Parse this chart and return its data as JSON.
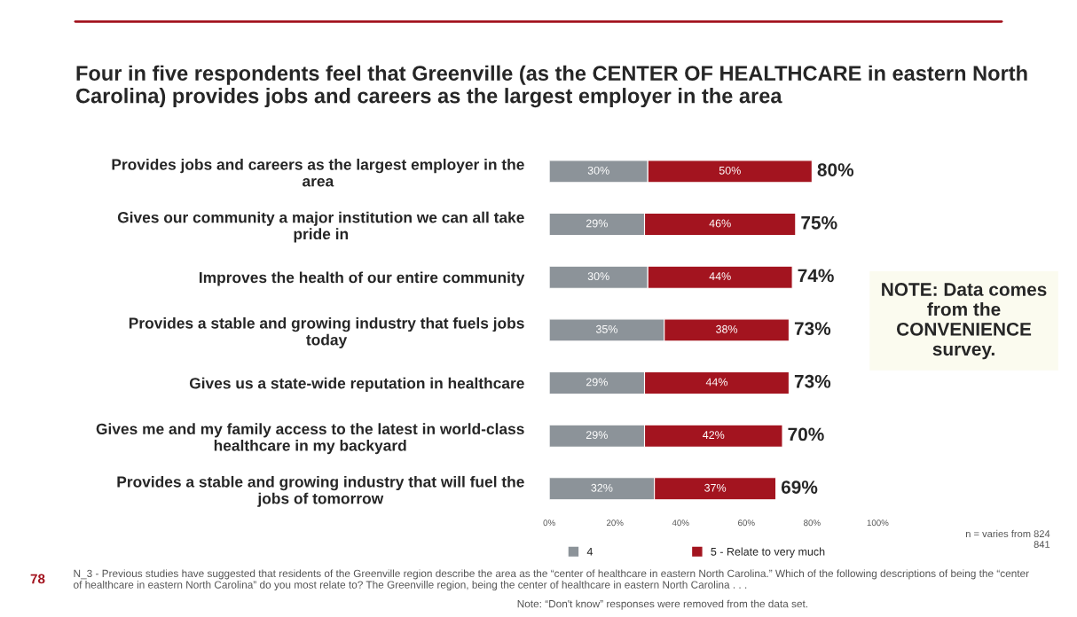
{
  "chart_data": {
    "type": "bar",
    "orientation": "horizontal",
    "stacked": true,
    "title": "Four in five respondents feel that Greenville (as the CENTER OF HEALTHCARE in eastern North Carolina) provides jobs and careers as the largest employer in the area",
    "categories": [
      "Provides jobs and careers as the largest employer in the\narea",
      "Gives our community a major institution we can all take\npride in",
      "Improves the health of our entire community",
      "Provides a stable and growing industry that fuels jobs\ntoday",
      "Gives us a state-wide reputation in healthcare",
      "Gives me and my family access to the latest in world-class\nhealthcare in my backyard",
      "Provides a stable and growing industry that will fuel the\njobs of tomorrow"
    ],
    "series": [
      {
        "name": "4",
        "color": "#8c9399",
        "values": [
          30,
          29,
          30,
          35,
          29,
          29,
          32
        ],
        "value_labels": [
          "30%",
          "29%",
          "30%",
          "35%",
          "29%",
          "29%",
          "32%"
        ]
      },
      {
        "name": "5 - Relate to very much",
        "color": "#a3141f",
        "values": [
          50,
          46,
          44,
          38,
          44,
          42,
          37
        ],
        "value_labels": [
          "50%",
          "46%",
          "44%",
          "38%",
          "44%",
          "42%",
          "37%"
        ]
      }
    ],
    "totals": [
      "80%",
      "75%",
      "74%",
      "73%",
      "73%",
      "70%",
      "69%"
    ],
    "xlim": [
      0,
      100
    ],
    "xticks": [
      {
        "value": 0,
        "label": "0%"
      },
      {
        "value": 20,
        "label": "20%"
      },
      {
        "value": 40,
        "label": "40%"
      },
      {
        "value": 60,
        "label": "60%"
      },
      {
        "value": 80,
        "label": "80%"
      },
      {
        "value": 100,
        "label": "100%"
      }
    ],
    "legend": "bottom",
    "grid": false,
    "annotations": [
      "NOTE: Data comes from the CONVENIENCE survey.",
      "N_3 - Previous studies have suggested that residents of the Greenville region describe the area as the “center of healthcare in eastern North Carolina.” Which of the following descriptions of being the “center of healthcare in eastern North Carolina” do you most relate to? The Greenville region, being the center of healthcare in eastern North Carolina . . .",
      "Note: “Don't know” responses were removed from the data set.",
      "n = varies from 824 841",
      "78"
    ]
  }
}
